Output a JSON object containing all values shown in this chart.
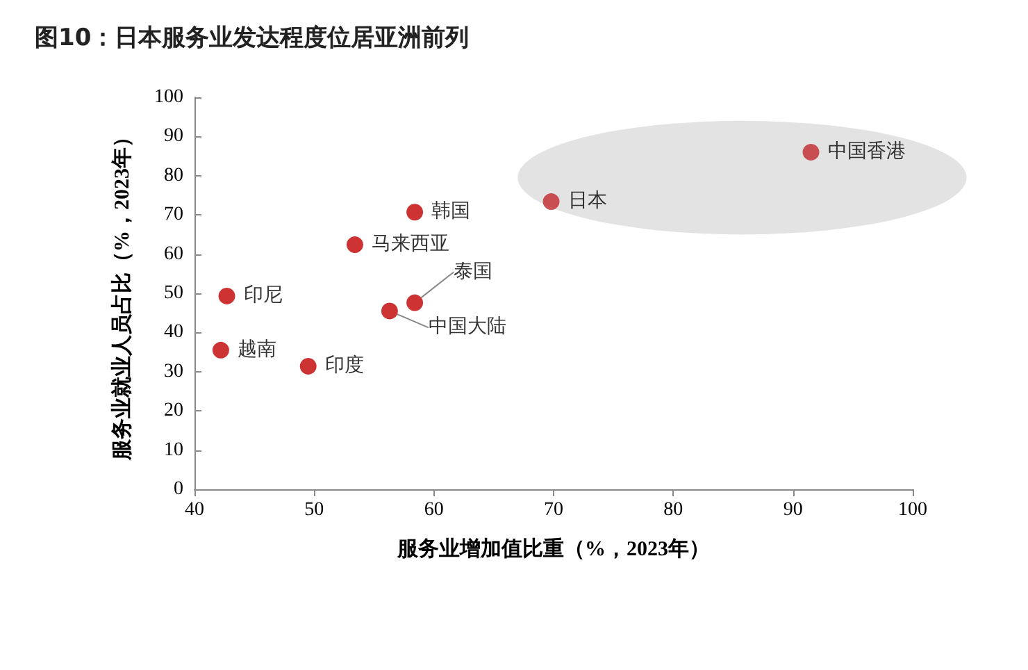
{
  "chart_data": {
    "type": "scatter",
    "title": "图10：日本服务业发达程度位居亚洲前列",
    "xlabel": "服务业增加值比重（%，2023年）",
    "ylabel": "服务业就业人员占比（%，2023年）",
    "series": [
      {
        "name": "中国香港",
        "color": "#c0282c",
        "x": [
          91.5
        ],
        "values": [
          86
        ]
      },
      {
        "name": "日本",
        "color": "#c0282c",
        "x": [
          69.8
        ],
        "values": [
          73.4
        ]
      },
      {
        "name": "韩国",
        "color": "#c00000",
        "x": [
          58.4
        ],
        "values": [
          70.7
        ]
      },
      {
        "name": "马来西亚",
        "color": "#c00000",
        "x": [
          53.4
        ],
        "values": [
          62.4
        ]
      },
      {
        "name": "泰国",
        "color": "#c00000",
        "x": [
          58.4
        ],
        "values": [
          47.6
        ]
      },
      {
        "name": "中国大陆",
        "color": "#c00000",
        "x": [
          56.3
        ],
        "values": [
          45.5
        ]
      },
      {
        "name": "印尼",
        "color": "#c00000",
        "x": [
          42.7
        ],
        "values": [
          49.3
        ]
      },
      {
        "name": "越南",
        "color": "#c00000",
        "x": [
          42.2
        ],
        "values": [
          35.5
        ]
      },
      {
        "name": "印度",
        "color": "#c00000",
        "x": [
          49.5
        ],
        "values": [
          31.4
        ]
      }
    ],
    "xlim": [
      40,
      100
    ],
    "xticks": [
      40,
      50,
      60,
      70,
      80,
      90,
      100
    ],
    "ylim": [
      0,
      100
    ],
    "yticks": [
      0,
      10,
      20,
      30,
      40,
      50,
      60,
      70,
      80,
      90,
      100
    ],
    "grid": false,
    "legend": false,
    "marker": "circle"
  }
}
